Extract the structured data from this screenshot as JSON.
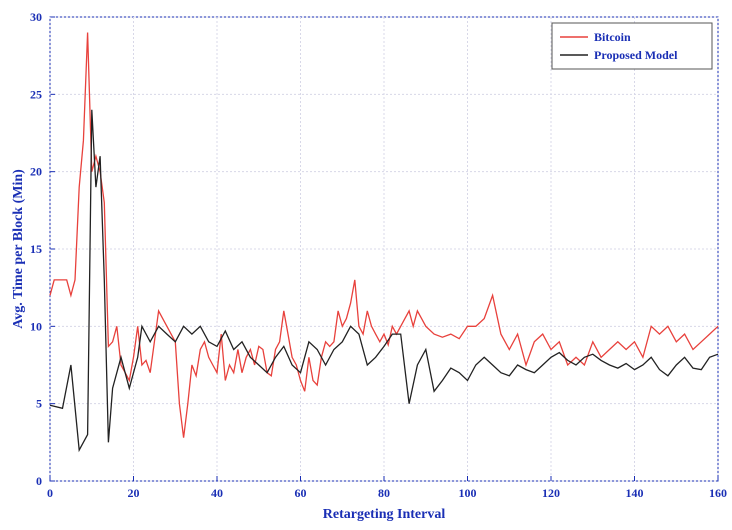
{
  "chart_data": {
    "type": "line",
    "x_label": "Retargeting Interval",
    "y_label": "Avg. Time per Block (Min)",
    "xlim": [
      0,
      160
    ],
    "ylim": [
      0,
      30
    ],
    "xticks": [
      0,
      20,
      40,
      60,
      80,
      100,
      120,
      140,
      160
    ],
    "yticks": [
      0,
      5,
      10,
      15,
      20,
      25,
      30
    ],
    "grid": true,
    "legend": "upper right",
    "series": [
      {
        "name": "Bitcoin",
        "color": "#e8413c",
        "x": [
          0,
          1,
          4,
          5,
          6,
          7,
          8,
          9,
          10,
          11,
          12,
          13,
          14,
          15,
          16,
          17,
          18,
          19,
          20,
          21,
          22,
          23,
          24,
          25,
          26,
          27,
          28,
          29,
          30,
          31,
          32,
          33,
          34,
          35,
          36,
          37,
          38,
          39,
          40,
          41,
          42,
          43,
          44,
          45,
          46,
          47,
          48,
          49,
          50,
          51,
          52,
          53,
          54,
          55,
          56,
          57,
          58,
          59,
          60,
          61,
          62,
          63,
          64,
          65,
          66,
          67,
          68,
          69,
          70,
          71,
          72,
          73,
          74,
          75,
          76,
          77,
          78,
          79,
          80,
          81,
          82,
          83,
          84,
          85,
          86,
          87,
          88,
          89,
          90,
          92,
          94,
          96,
          98,
          100,
          102,
          104,
          106,
          108,
          110,
          112,
          114,
          116,
          118,
          120,
          122,
          124,
          126,
          128,
          130,
          132,
          134,
          136,
          138,
          140,
          142,
          144,
          146,
          148,
          150,
          152,
          154,
          156,
          158,
          160
        ],
        "values": [
          12,
          13,
          13,
          12,
          13,
          19,
          22,
          29,
          20,
          21,
          20,
          18,
          8.7,
          9,
          10,
          7.5,
          7,
          6.5,
          8,
          10,
          7.5,
          7.8,
          7,
          9,
          11,
          10.5,
          10,
          9.5,
          9,
          5,
          2.8,
          5,
          7.5,
          6.8,
          8.5,
          9,
          8,
          7.5,
          7,
          9.5,
          6.5,
          7.5,
          7,
          8.5,
          7,
          8,
          8.5,
          7.5,
          8.7,
          8.5,
          7,
          6.8,
          8.5,
          9,
          11,
          9.5,
          8,
          7.5,
          6.5,
          5.8,
          8,
          6.5,
          6.2,
          8,
          9,
          8.7,
          9,
          11,
          10,
          10.5,
          11.5,
          13,
          10,
          9.5,
          11,
          10,
          9.5,
          9,
          9.5,
          8.8,
          10,
          9.5,
          10,
          10.5,
          11,
          10,
          11,
          10.5,
          10,
          9.5,
          9.3,
          9.5,
          9.2,
          10,
          10,
          10.5,
          12,
          9.5,
          8.5,
          9.5,
          7.5,
          9,
          9.5,
          8.5,
          9,
          7.5,
          8,
          7.5,
          9,
          8,
          8.5,
          9,
          8.5,
          9,
          8,
          10,
          9.5,
          10,
          9,
          9.5,
          8.5,
          9,
          9.5,
          10
        ]
      },
      {
        "name": "Proposed Model",
        "color": "#222222",
        "x": [
          0,
          3,
          5,
          7,
          9,
          10,
          11,
          12,
          13,
          14,
          15,
          17,
          19,
          21,
          22,
          24,
          26,
          28,
          30,
          32,
          34,
          36,
          38,
          40,
          42,
          44,
          46,
          48,
          50,
          52,
          54,
          56,
          58,
          60,
          62,
          64,
          66,
          68,
          70,
          72,
          74,
          76,
          78,
          80,
          82,
          84,
          86,
          88,
          90,
          92,
          94,
          96,
          98,
          100,
          102,
          104,
          106,
          108,
          110,
          112,
          114,
          116,
          118,
          120,
          122,
          124,
          126,
          128,
          130,
          132,
          134,
          136,
          138,
          140,
          142,
          144,
          146,
          148,
          150,
          152,
          154,
          156,
          158,
          160
        ],
        "values": [
          4.9,
          4.7,
          7.5,
          2,
          3,
          24,
          19,
          21,
          13,
          2.5,
          6,
          8,
          6,
          8,
          10,
          9,
          10,
          9.5,
          9,
          10,
          9.5,
          10,
          9,
          8.7,
          9.7,
          8.5,
          9,
          8,
          7.5,
          7,
          8,
          8.7,
          7.5,
          7,
          9,
          8.5,
          7.5,
          8.5,
          9,
          10,
          9.5,
          7.5,
          8,
          8.7,
          9.5,
          9.5,
          5,
          7.5,
          8.5,
          5.8,
          6.5,
          7.3,
          7,
          6.5,
          7.5,
          8,
          7.5,
          7,
          6.8,
          7.5,
          7.2,
          7,
          7.5,
          8,
          8.3,
          7.8,
          7.5,
          8,
          8.2,
          7.8,
          7.5,
          7.3,
          7.6,
          7.2,
          7.5,
          8,
          7.2,
          6.8,
          7.5,
          8,
          7.3,
          7.2,
          8,
          8.2
        ]
      }
    ]
  }
}
